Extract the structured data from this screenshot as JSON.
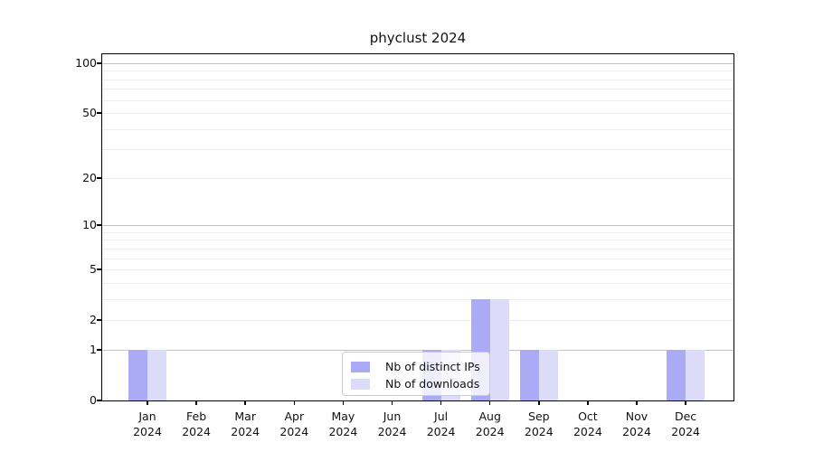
{
  "chart_data": {
    "type": "bar",
    "title": "phyclust 2024",
    "categories": [
      "Jan",
      "Feb",
      "Mar",
      "Apr",
      "May",
      "Jun",
      "Jul",
      "Aug",
      "Sep",
      "Oct",
      "Nov",
      "Dec"
    ],
    "x_year_label": "2024",
    "series": [
      {
        "name": "Nb of distinct IPs",
        "color": "#aaaaf5",
        "values": [
          1,
          0,
          0,
          0,
          0,
          0,
          1,
          3,
          1,
          0,
          0,
          1
        ]
      },
      {
        "name": "Nb of downloads",
        "color": "#dcdcf8",
        "values": [
          1,
          0,
          0,
          0,
          0,
          0,
          1,
          3,
          1,
          0,
          0,
          1
        ]
      }
    ],
    "xlabel": "",
    "ylabel": "",
    "yscale": "log1p",
    "ylim": [
      0,
      113
    ],
    "yticks": [
      0,
      1,
      2,
      5,
      10,
      20,
      50,
      100
    ],
    "major_gridlines": [
      1,
      10,
      100
    ],
    "minor_gridlines": [
      2,
      3,
      4,
      5,
      6,
      7,
      8,
      9,
      20,
      30,
      40,
      50,
      60,
      70,
      80,
      90
    ],
    "grid": true,
    "legend_position": "lower center inside plot"
  },
  "colors": {
    "axis": "#000000",
    "major_grid": "#c3c3c3",
    "minor_grid": "#ededed",
    "legend_border": "#cccccc"
  }
}
